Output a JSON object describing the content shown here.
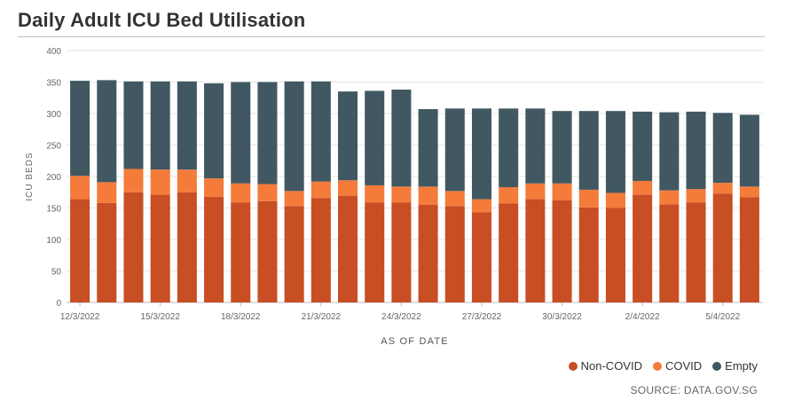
{
  "chart_data": {
    "type": "bar",
    "stacked": true,
    "title": "Daily Adult ICU Bed Utilisation",
    "xlabel": "AS OF DATE",
    "ylabel": "ICU BEDS",
    "ylim": [
      0,
      400
    ],
    "yticks": [
      "0",
      "50",
      "100",
      "150",
      "200",
      "250",
      "300",
      "350",
      "400"
    ],
    "ytick_values": [
      0,
      50,
      100,
      150,
      200,
      250,
      300,
      350,
      400
    ],
    "categories": [
      "12/3/2022",
      "13/3/2022",
      "14/3/2022",
      "15/3/2022",
      "16/3/2022",
      "17/3/2022",
      "18/3/2022",
      "19/3/2022",
      "20/3/2022",
      "21/3/2022",
      "22/3/2022",
      "23/3/2022",
      "24/3/2022",
      "25/3/2022",
      "26/3/2022",
      "27/3/2022",
      "28/3/2022",
      "29/3/2022",
      "30/3/2022",
      "31/3/2022",
      "1/4/2022",
      "2/4/2022",
      "3/4/2022",
      "4/4/2022",
      "5/4/2022",
      "6/4/2022"
    ],
    "xtick_labels": [
      {
        "index": 0,
        "label": "12/3/2022"
      },
      {
        "index": 3,
        "label": "15/3/2022"
      },
      {
        "index": 6,
        "label": "18/3/2022"
      },
      {
        "index": 9,
        "label": "21/3/2022"
      },
      {
        "index": 12,
        "label": "24/3/2022"
      },
      {
        "index": 15,
        "label": "27/3/2022"
      },
      {
        "index": 18,
        "label": "30/3/2022"
      },
      {
        "index": 21,
        "label": "2/4/2022"
      },
      {
        "index": 24,
        "label": "5/4/2022"
      }
    ],
    "series": [
      {
        "name": "Non-COVID",
        "color": "#c84e24",
        "values": [
          164,
          158,
          175,
          171,
          175,
          168,
          159,
          161,
          153,
          166,
          169,
          159,
          159,
          155,
          153,
          143,
          157,
          164,
          162,
          151,
          150,
          171,
          156,
          159,
          173,
          167
        ]
      },
      {
        "name": "COVID",
        "color": "#f47b3a",
        "values": [
          37,
          33,
          37,
          40,
          36,
          29,
          30,
          27,
          24,
          26,
          25,
          27,
          25,
          29,
          24,
          21,
          26,
          25,
          27,
          28,
          24,
          22,
          22,
          21,
          17,
          17
        ]
      },
      {
        "name": "Empty",
        "color": "#415862",
        "values": [
          151,
          162,
          139,
          140,
          140,
          151,
          161,
          162,
          174,
          159,
          141,
          150,
          154,
          123,
          131,
          144,
          125,
          119,
          115,
          125,
          130,
          110,
          124,
          123,
          111,
          114
        ]
      }
    ],
    "legend": [
      "Non-COVID",
      "COVID",
      "Empty"
    ],
    "legend_position": "bottom-right",
    "grid": true
  },
  "source_text": "SOURCE: DATA.GOV.SG"
}
